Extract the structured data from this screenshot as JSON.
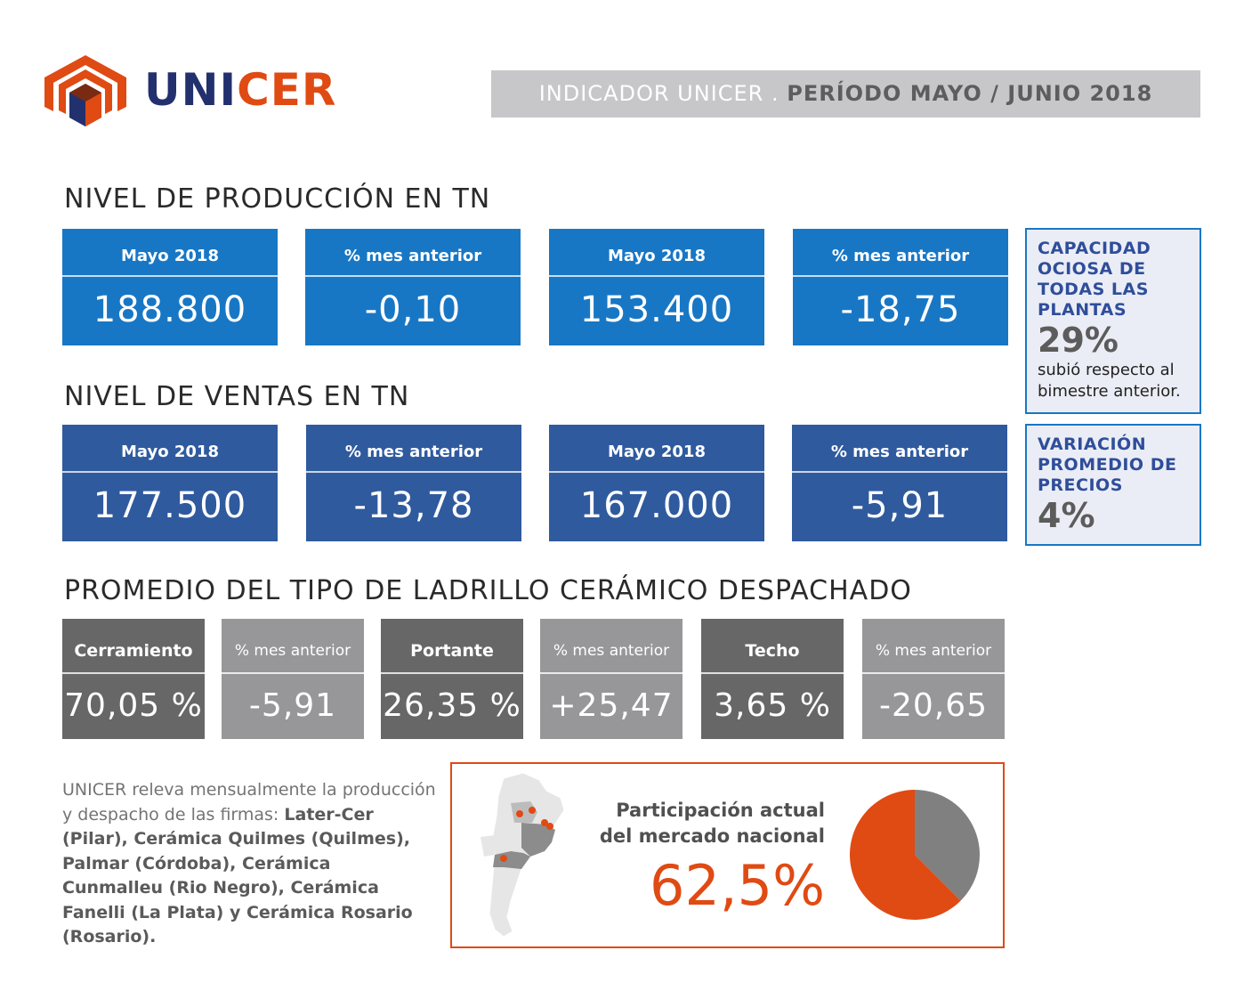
{
  "header": {
    "brand_part1": "UNI",
    "brand_part2": "CER",
    "banner_prefix": "INDICADOR UNICER . ",
    "banner_period": "PERÍODO MAYO / JUNIO 2018"
  },
  "production": {
    "title": "NIVEL DE PRODUCCIÓN EN TN",
    "cards": [
      {
        "label": "Mayo 2018",
        "value": "188.800"
      },
      {
        "label": "% mes anterior",
        "value": "-0,10"
      },
      {
        "label": "Mayo 2018",
        "value": "153.400"
      },
      {
        "label": "% mes anterior",
        "value": "-18,75"
      }
    ]
  },
  "sales": {
    "title": "NIVEL DE VENTAS EN TN",
    "cards": [
      {
        "label": "Mayo  2018",
        "value": "177.500"
      },
      {
        "label": "% mes anterior",
        "value": "-13,78"
      },
      {
        "label": "Mayo 2018",
        "value": "167.000"
      },
      {
        "label": "% mes anterior",
        "value": "-5,91"
      }
    ]
  },
  "capacity": {
    "title": "CAPACIDAD OCIOSA DE TODAS LAS PLANTAS",
    "value": "29%",
    "note": "subió respecto al bimestre anterior."
  },
  "prices": {
    "title": "VARIACIÓN PROMEDIO DE PRECIOS",
    "value": "4%"
  },
  "bricks": {
    "title": "PROMEDIO DEL TIPO DE LADRILLO CERÁMICO DESPACHADO",
    "cards": [
      {
        "label": "Cerramiento",
        "value": "70,05 %"
      },
      {
        "label": "% mes anterior",
        "value": "-5,91"
      },
      {
        "label": "Portante",
        "value": "26,35 %"
      },
      {
        "label": "% mes anterior",
        "value": "+25,47"
      },
      {
        "label": "Techo",
        "value": "3,65 %"
      },
      {
        "label": "% mes anterior",
        "value": "-20,65"
      }
    ]
  },
  "about": {
    "intro": "UNICER releva mensualmente la producción y despacho de las firmas:",
    "firms": "Later-Cer (Pilar), Cerámica Quilmes (Quilmes), Palmar (Córdoba), Cerámica Cunmalleu (Rio Negro), Cerámica Fanelli (La Plata) y Cerámica Rosario (Rosario)."
  },
  "market": {
    "label_line1": "Participación actual",
    "label_line2": "del mercado nacional",
    "value": "62,5%",
    "share": 0.625
  },
  "colors": {
    "accent_orange": "#e04a13",
    "brand_navy": "#23306e",
    "blue_primary": "#1877c5",
    "blue_secondary": "#2f5a9e",
    "gray_dark": "#676767",
    "gray_light": "#97979a",
    "banner_gray": "#c7c7c9"
  },
  "icons": {
    "logo": "unicer-logo-icon",
    "map": "argentina-map-icon"
  }
}
